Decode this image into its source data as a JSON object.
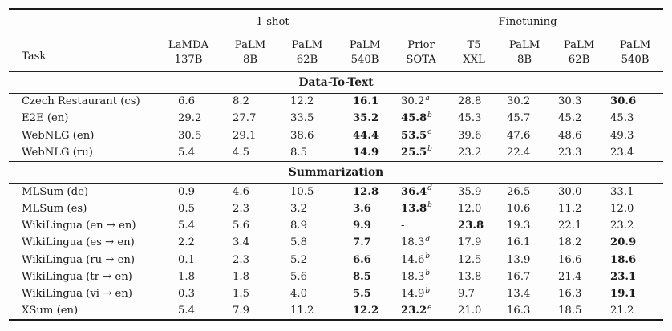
{
  "table": {
    "task_header": "Task",
    "groups": [
      {
        "label": "1-shot",
        "span": 4
      },
      {
        "label": "Finetuning",
        "span": 5
      }
    ],
    "columns": [
      {
        "line1": "LaMDA",
        "line2": "137B"
      },
      {
        "line1": "PaLM",
        "line2": "8B"
      },
      {
        "line1": "PaLM",
        "line2": "62B"
      },
      {
        "line1": "PaLM",
        "line2": "540B"
      },
      {
        "line1": "Prior",
        "line2": "SOTA"
      },
      {
        "line1": "T5",
        "line2": "XXL"
      },
      {
        "line1": "PaLM",
        "line2": "8B"
      },
      {
        "line1": "PaLM",
        "line2": "62B"
      },
      {
        "line1": "PaLM",
        "line2": "540B"
      }
    ],
    "sections": [
      {
        "title": "Data-To-Text",
        "rows": [
          {
            "task": "Czech Restaurant (cs)",
            "values": [
              {
                "v": "6.6"
              },
              {
                "v": "8.2"
              },
              {
                "v": "12.2"
              },
              {
                "v": "16.1",
                "bold": true
              },
              {
                "v": "30.2",
                "sup": "a"
              },
              {
                "v": "28.8"
              },
              {
                "v": "30.2"
              },
              {
                "v": "30.3"
              },
              {
                "v": "30.6",
                "bold": true
              }
            ]
          },
          {
            "task": "E2E (en)",
            "values": [
              {
                "v": "29.2"
              },
              {
                "v": "27.7"
              },
              {
                "v": "33.5"
              },
              {
                "v": "35.2",
                "bold": true
              },
              {
                "v": "45.8",
                "bold": true,
                "sup": "b"
              },
              {
                "v": "45.3"
              },
              {
                "v": "45.7"
              },
              {
                "v": "45.2"
              },
              {
                "v": "45.3"
              }
            ]
          },
          {
            "task": "WebNLG (en)",
            "values": [
              {
                "v": "30.5"
              },
              {
                "v": "29.1"
              },
              {
                "v": "38.6"
              },
              {
                "v": "44.4",
                "bold": true
              },
              {
                "v": "53.5",
                "bold": true,
                "sup": "c"
              },
              {
                "v": "39.6"
              },
              {
                "v": "47.6"
              },
              {
                "v": "48.6"
              },
              {
                "v": "49.3"
              }
            ]
          },
          {
            "task": "WebNLG (ru)",
            "values": [
              {
                "v": "5.4"
              },
              {
                "v": "4.5"
              },
              {
                "v": "8.5"
              },
              {
                "v": "14.9",
                "bold": true
              },
              {
                "v": "25.5",
                "bold": true,
                "sup": "b"
              },
              {
                "v": "23.2"
              },
              {
                "v": "22.4"
              },
              {
                "v": "23.3"
              },
              {
                "v": "23.4"
              }
            ]
          }
        ]
      },
      {
        "title": "Summarization",
        "rows": [
          {
            "task": "MLSum (de)",
            "values": [
              {
                "v": "0.9"
              },
              {
                "v": "4.6"
              },
              {
                "v": "10.5"
              },
              {
                "v": "12.8",
                "bold": true
              },
              {
                "v": "36.4",
                "bold": true,
                "sup": "d"
              },
              {
                "v": "35.9"
              },
              {
                "v": "26.5"
              },
              {
                "v": "30.0"
              },
              {
                "v": "33.1"
              }
            ]
          },
          {
            "task": "MLSum (es)",
            "values": [
              {
                "v": "0.5"
              },
              {
                "v": "2.3"
              },
              {
                "v": "3.2"
              },
              {
                "v": "3.6",
                "bold": true
              },
              {
                "v": "13.8",
                "bold": true,
                "sup": "b"
              },
              {
                "v": "12.0"
              },
              {
                "v": "10.6"
              },
              {
                "v": "11.2"
              },
              {
                "v": "12.0"
              }
            ]
          },
          {
            "task": "WikiLingua (en → en)",
            "values": [
              {
                "v": "5.4"
              },
              {
                "v": "5.6"
              },
              {
                "v": "8.9"
              },
              {
                "v": "9.9",
                "bold": true
              },
              {
                "v": "-"
              },
              {
                "v": "23.8",
                "bold": true
              },
              {
                "v": "19.3"
              },
              {
                "v": "22.1"
              },
              {
                "v": "23.2"
              }
            ]
          },
          {
            "task": "WikiLingua (es → en)",
            "values": [
              {
                "v": "2.2"
              },
              {
                "v": "3.4"
              },
              {
                "v": "5.8"
              },
              {
                "v": "7.7",
                "bold": true
              },
              {
                "v": "18.3",
                "sup": "d"
              },
              {
                "v": "17.9"
              },
              {
                "v": "16.1"
              },
              {
                "v": "18.2"
              },
              {
                "v": "20.9",
                "bold": true
              }
            ]
          },
          {
            "task": "WikiLingua (ru → en)",
            "values": [
              {
                "v": "0.1"
              },
              {
                "v": "2.3"
              },
              {
                "v": "5.2"
              },
              {
                "v": "6.6",
                "bold": true
              },
              {
                "v": "14.6",
                "sup": "b"
              },
              {
                "v": "12.5"
              },
              {
                "v": "13.9"
              },
              {
                "v": "16.6"
              },
              {
                "v": "18.6",
                "bold": true
              }
            ]
          },
          {
            "task": "WikiLingua (tr → en)",
            "values": [
              {
                "v": "1.8"
              },
              {
                "v": "1.8"
              },
              {
                "v": "5.6"
              },
              {
                "v": "8.5",
                "bold": true
              },
              {
                "v": "18.3",
                "sup": "b"
              },
              {
                "v": "13.8"
              },
              {
                "v": "16.7"
              },
              {
                "v": "21.4"
              },
              {
                "v": "23.1",
                "bold": true
              }
            ]
          },
          {
            "task": "WikiLingua (vi → en)",
            "values": [
              {
                "v": "0.3"
              },
              {
                "v": "1.5"
              },
              {
                "v": "4.0"
              },
              {
                "v": "5.5",
                "bold": true
              },
              {
                "v": "14.9",
                "sup": "b"
              },
              {
                "v": "9.7"
              },
              {
                "v": "13.4"
              },
              {
                "v": "16.3"
              },
              {
                "v": "19.1",
                "bold": true
              }
            ]
          },
          {
            "task": "XSum (en)",
            "values": [
              {
                "v": "5.4"
              },
              {
                "v": "7.9"
              },
              {
                "v": "11.2"
              },
              {
                "v": "12.2",
                "bold": true
              },
              {
                "v": "23.2",
                "bold": true,
                "sup": "e"
              },
              {
                "v": "21.0"
              },
              {
                "v": "16.3"
              },
              {
                "v": "18.5"
              },
              {
                "v": "21.2"
              }
            ]
          }
        ]
      }
    ]
  }
}
